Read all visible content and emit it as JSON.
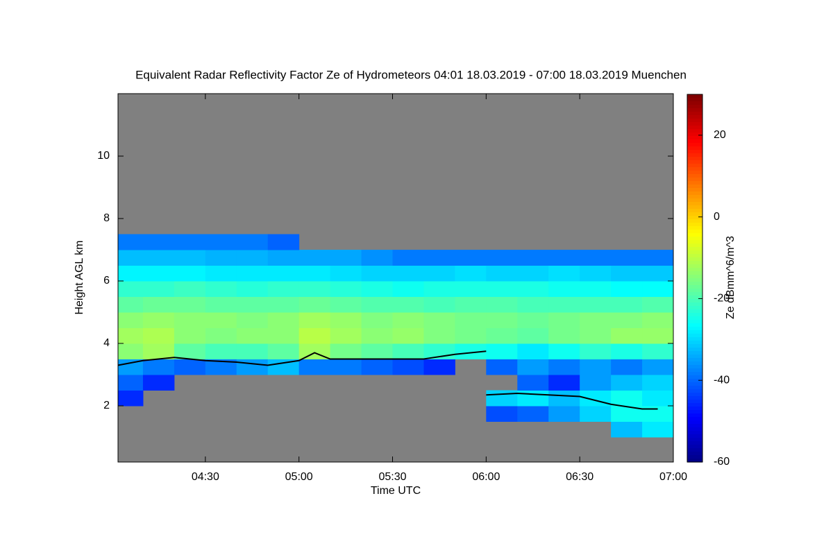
{
  "chart_data": {
    "type": "heatmap",
    "title": "Equivalent Radar Reflectivity Factor Ze of Hydrometeors   04:01 18.03.2019 - 07:00 18.03.2019 Muenchen",
    "x_label": "Time UTC",
    "y_label": "Height AGL km",
    "colorbar_label": "Ze dBmm^6/m^3",
    "background": "#808080",
    "colormap": "jet",
    "xlim": [
      "04:02",
      "07:00"
    ],
    "xticks": [
      "04:30",
      "05:00",
      "05:30",
      "06:00",
      "06:30",
      "07:00"
    ],
    "ylim": [
      0.2,
      12
    ],
    "yticks": [
      2,
      4,
      6,
      8,
      10
    ],
    "zlim": [
      -60,
      30
    ],
    "zticks": [
      -60,
      -40,
      -20,
      0,
      20
    ],
    "x_bins": [
      "04:02",
      "04:10",
      "04:20",
      "04:30",
      "04:40",
      "04:50",
      "05:00",
      "05:10",
      "05:20",
      "05:30",
      "05:40",
      "05:50",
      "06:00",
      "06:10",
      "06:20",
      "06:30",
      "06:40",
      "06:50",
      "07:00"
    ],
    "y_bins": [
      1.0,
      1.5,
      2.0,
      2.5,
      3.0,
      3.5,
      4.0,
      4.5,
      5.0,
      5.5,
      6.0,
      6.5,
      7.0,
      7.5
    ],
    "z": [
      [
        null,
        null,
        null,
        null,
        null,
        null,
        null,
        null,
        null,
        null,
        null,
        null,
        null,
        null,
        null,
        null,
        -32,
        -28
      ],
      [
        null,
        null,
        null,
        null,
        null,
        null,
        null,
        null,
        null,
        null,
        null,
        null,
        -42,
        -40,
        -35,
        -30,
        -25,
        -25
      ],
      [
        -45,
        null,
        null,
        null,
        null,
        null,
        null,
        null,
        null,
        null,
        null,
        null,
        -30,
        -28,
        -32,
        -28,
        -25,
        -28
      ],
      [
        -40,
        -45,
        null,
        null,
        null,
        null,
        null,
        null,
        null,
        null,
        null,
        null,
        null,
        -40,
        -45,
        -35,
        -32,
        -30
      ],
      [
        -35,
        -38,
        -40,
        -38,
        -35,
        -32,
        -38,
        -38,
        -40,
        -42,
        -45,
        null,
        -40,
        -35,
        -38,
        -35,
        -38,
        -35
      ],
      [
        -14,
        -12,
        -18,
        -20,
        -20,
        -18,
        -12,
        -16,
        -18,
        -20,
        -22,
        -24,
        -25,
        -28,
        -25,
        -22,
        -24,
        -22
      ],
      [
        -12,
        -11,
        -14,
        -15,
        -14,
        -14,
        -10,
        -12,
        -14,
        -13,
        -15,
        -16,
        -17,
        -18,
        -16,
        -15,
        -13,
        -13
      ],
      [
        -14,
        -13,
        -14,
        -14,
        -15,
        -14,
        -12,
        -13,
        -15,
        -14,
        -15,
        -16,
        -16,
        -17,
        -16,
        -15,
        -15,
        -14
      ],
      [
        -18,
        -17,
        -17,
        -18,
        -18,
        -18,
        -17,
        -18,
        -19,
        -19,
        -20,
        -19,
        -19,
        -20,
        -20,
        -20,
        -20,
        -19
      ],
      [
        -22,
        -22,
        -21,
        -22,
        -23,
        -22,
        -22,
        -23,
        -24,
        -25,
        -24,
        -24,
        -24,
        -24,
        -25,
        -25,
        -26,
        -26
      ],
      [
        -27,
        -27,
        -27,
        -28,
        -28,
        -28,
        -28,
        -29,
        -30,
        -30,
        -30,
        -29,
        -30,
        -30,
        -29,
        -30,
        -31,
        -31
      ],
      [
        -32,
        -32,
        -32,
        -33,
        -33,
        -34,
        -34,
        -34,
        -36,
        -38,
        -38,
        -38,
        -38,
        -38,
        -38,
        -38,
        -38,
        -38
      ],
      [
        -38,
        -38,
        -38,
        -38,
        -38,
        -40,
        null,
        null,
        null,
        null,
        null,
        null,
        null,
        null,
        null,
        null,
        null,
        null
      ]
    ],
    "line": {
      "color": "#000000",
      "x": [
        "04:02",
        "04:10",
        "04:20",
        "04:30",
        "04:40",
        "04:50",
        "05:00",
        "05:05",
        "05:10",
        "05:20",
        "05:30",
        "05:40",
        "05:50",
        "06:00",
        "06:00",
        "06:00",
        "06:10",
        "06:20",
        "06:30",
        "06:40",
        "06:50",
        "06:55"
      ],
      "y": [
        3.3,
        3.45,
        3.55,
        3.45,
        3.4,
        3.3,
        3.45,
        3.7,
        3.5,
        3.5,
        3.5,
        3.5,
        3.65,
        3.75,
        null,
        2.35,
        2.4,
        2.35,
        2.3,
        2.05,
        1.9,
        1.9
      ]
    }
  }
}
